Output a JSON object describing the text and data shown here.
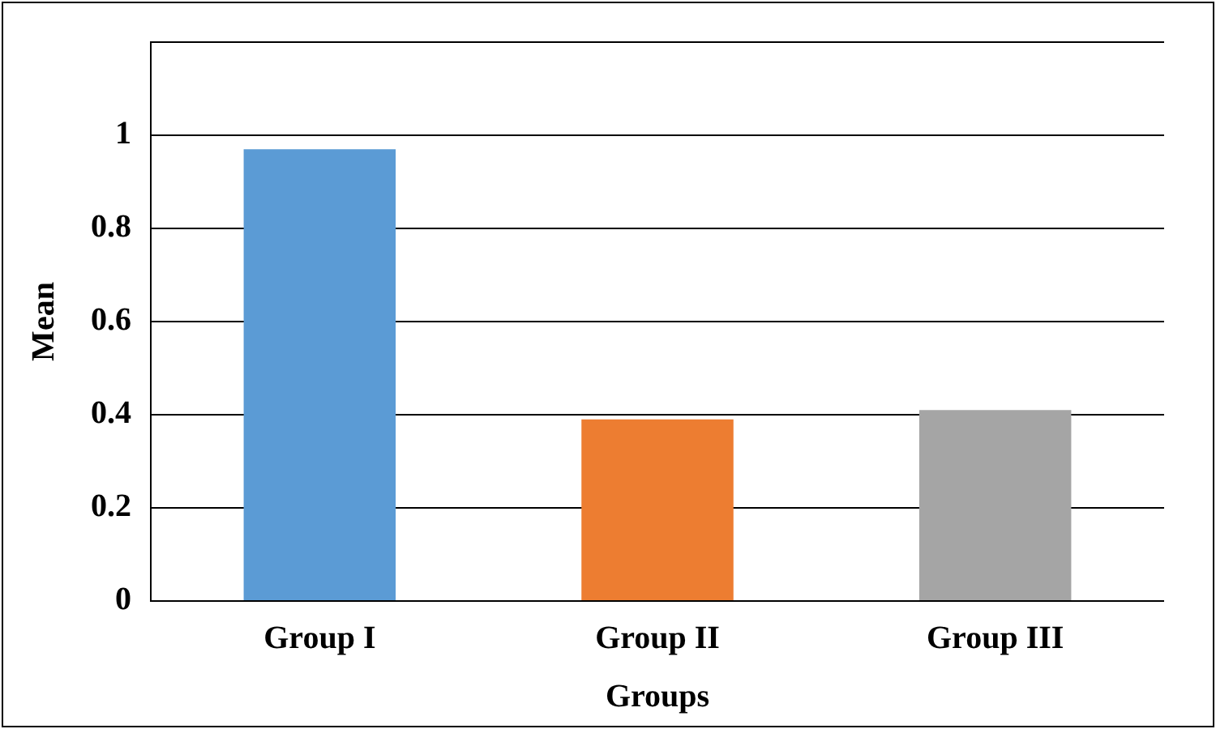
{
  "chart_data": {
    "type": "bar",
    "xlabel": "Groups",
    "ylabel": "Mean",
    "categories": [
      "Group I",
      "Group II",
      "Group III"
    ],
    "values": [
      0.97,
      0.39,
      0.41
    ],
    "colors": [
      "#5b9bd5",
      "#ed7d31",
      "#a5a5a5"
    ],
    "ylim": [
      0,
      1.2
    ],
    "yticks": [
      0,
      0.2,
      0.4,
      0.6,
      0.8,
      1,
      {
        "value": 1.2,
        "label": null
      }
    ],
    "grid": "y",
    "legend": false
  }
}
